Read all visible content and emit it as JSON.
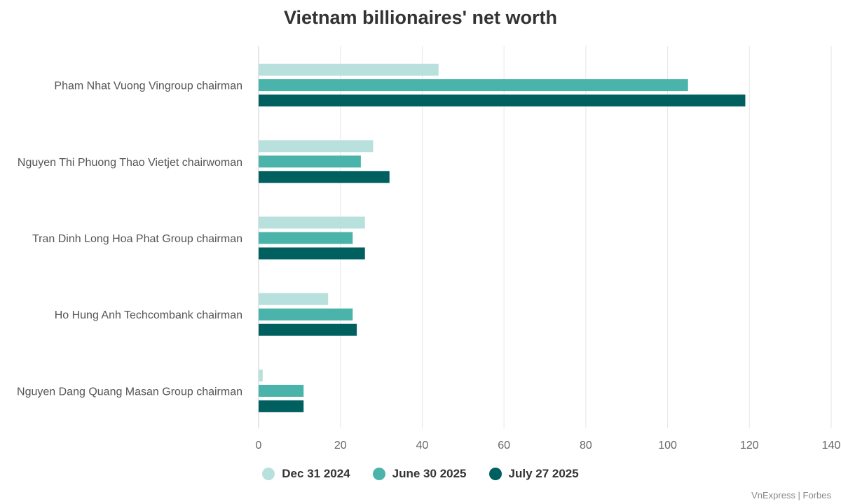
{
  "title": "Vietnam billionaires' net worth",
  "source": "VnExpress | Forbes",
  "colors": [
    "#b8e0dd",
    "#4bb4aa",
    "#00605f"
  ],
  "chart_data": {
    "type": "bar",
    "orientation": "horizontal",
    "title": "Vietnam billionaires' net worth",
    "xlabel": "",
    "ylabel": "",
    "xlim": [
      0,
      140
    ],
    "x_ticks": [
      0,
      20,
      40,
      60,
      80,
      100,
      120,
      140
    ],
    "grid": true,
    "legend_position": "bottom",
    "categories": [
      "Pham Nhat Vuong Vingroup chairman",
      "Nguyen Thi Phuong Thao Vietjet chairwoman",
      "Tran Dinh Long Hoa Phat Group chairman",
      "Ho Hung Anh Techcombank chairman",
      "Nguyen Dang Quang Masan Group chairman"
    ],
    "series": [
      {
        "name": "Dec 31 2024",
        "values": [
          44,
          28,
          26,
          17,
          1
        ]
      },
      {
        "name": "June 30 2025",
        "values": [
          105,
          25,
          23,
          23,
          11
        ]
      },
      {
        "name": "July 27 2025",
        "values": [
          119,
          32,
          26,
          24,
          11
        ]
      }
    ]
  }
}
